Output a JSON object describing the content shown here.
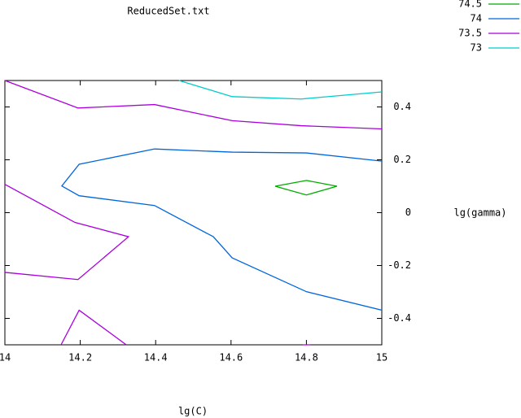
{
  "chart_data": {
    "type": "line",
    "title": "ReducedSet.txt",
    "x_label": "lg(C)",
    "y_label": "lg(gamma)",
    "xlim": [
      14,
      15
    ],
    "ylim": [
      -0.5,
      0.5
    ],
    "xticks": [
      14,
      14.2,
      14.4,
      14.6,
      14.8,
      15
    ],
    "yticks": [
      -0.4,
      -0.2,
      0,
      0.2,
      0.4
    ],
    "series": [
      {
        "name": "74.5",
        "color": "#00aa00",
        "x": [
          14.717,
          14.8,
          14.881,
          14.8,
          14.717
        ],
        "values": [
          0.1,
          0.122,
          0.1,
          0.067,
          0.1
        ]
      },
      {
        "name": "74",
        "color": "#0066dd",
        "x": [
          15,
          14.8,
          14.603,
          14.397,
          14.197,
          14.151,
          14.197,
          14.397,
          14.553,
          14.603,
          14.8,
          15
        ],
        "values": [
          0.195,
          0.226,
          0.229,
          0.241,
          0.183,
          0.101,
          0.064,
          0.027,
          -0.091,
          -0.171,
          -0.299,
          -0.369
        ]
      },
      {
        "name": "73.5",
        "color": "#aa00dd",
        "x": [
          14,
          14.194,
          14.397,
          14.603,
          14.786,
          15,
          null,
          14,
          14.186,
          14.328,
          14.194,
          14,
          null,
          14.149,
          14.197,
          14.322,
          null,
          14.79,
          14.81
        ],
        "values": [
          0.5,
          0.396,
          0.409,
          0.348,
          0.329,
          0.317,
          null,
          0.107,
          -0.037,
          -0.091,
          -0.253,
          -0.226,
          null,
          -0.5,
          -0.369,
          -0.5,
          null,
          -0.5,
          -0.5
        ]
      },
      {
        "name": "73",
        "color": "#00cccc",
        "x": [
          14.462,
          14.603,
          14.786,
          15
        ],
        "values": [
          0.5,
          0.439,
          0.43,
          0.457
        ]
      }
    ]
  }
}
